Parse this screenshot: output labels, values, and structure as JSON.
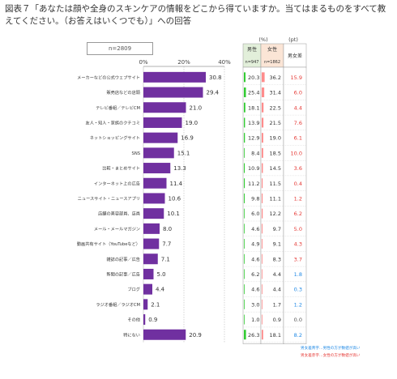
{
  "title": "図表７「あなたは顔や全身のスキンケアの情報をどこから得ていますか。当てはまるものをすべて教えてください。（お答えはいくつでも）」への回答",
  "n_label": "n=2809",
  "table": {
    "unit_pct": "(%)",
    "unit_pt": "(pt)",
    "male_header": "男性",
    "male_n": "n=947",
    "female_header": "女性",
    "female_n": "n=1862",
    "diff_header": "男女差"
  },
  "notes": {
    "positive": "男女差青字…男性の方が数値が高い",
    "negative": "男女差赤字…女性の方が数値が高い"
  },
  "colors": {
    "bar": "#7030a0",
    "male_bg": "#e2efda",
    "female_bg": "#fbe5d6",
    "male_bar": "#33cc33",
    "female_bar": "#ff8c8c",
    "diff_red": "#e53935",
    "diff_blue": "#1e88e5"
  },
  "chart_data": {
    "type": "bar",
    "orientation": "horizontal",
    "categories": [
      "メーカーなどの公式ウェブサイト",
      "販売店などの店頭",
      "テレビ番組／テレビCM",
      "友人・知人・家族のクチコミ",
      "ネットショッピングサイト",
      "SNS",
      "比較・まとめサイト",
      "インターネット上の広告",
      "ニュースサイト・ニュースアプリ",
      "店舗の美容部員、店員",
      "メール・メールマガジン",
      "動画共有サイト（YouTubeなど）",
      "雑誌の記事／広告",
      "新聞の記事／広告",
      "ブログ",
      "ラジオ番組／ラジオCM",
      "その他",
      "特にない"
    ],
    "values": [
      30.8,
      29.4,
      21.0,
      19.0,
      16.9,
      15.1,
      13.3,
      11.4,
      10.6,
      10.1,
      8.0,
      7.7,
      7.1,
      5.0,
      4.4,
      2.1,
      0.9,
      20.9
    ],
    "value_labels": [
      "30.8",
      "29.4",
      "21.0",
      "19.0",
      "16.9",
      "15.1",
      "13.3",
      "11.4",
      "10.6",
      "10.1",
      "8.0",
      "7.7",
      "7.1",
      "5.0",
      "4.4",
      "2.1",
      "0.9",
      "20.9"
    ],
    "xlim": [
      0,
      40
    ],
    "xticks": [
      "0%",
      "20%",
      "40%"
    ],
    "male": [
      "20.3",
      "25.4",
      "18.1",
      "13.9",
      "12.9",
      "8.4",
      "10.9",
      "11.2",
      "9.8",
      "6.0",
      "4.6",
      "4.9",
      "4.6",
      "6.2",
      "4.6",
      "3.0",
      "1.0",
      "26.3"
    ],
    "female": [
      "36.2",
      "31.4",
      "22.5",
      "21.5",
      "19.0",
      "18.5",
      "14.5",
      "11.5",
      "11.1",
      "12.2",
      "9.7",
      "9.1",
      "8.3",
      "4.4",
      "4.4",
      "1.7",
      "0.9",
      "18.1"
    ],
    "diff": [
      "15.9",
      "6.0",
      "4.4",
      "7.6",
      "6.1",
      "10.0",
      "3.6",
      "0.4",
      "1.2",
      "6.2",
      "5.0",
      "4.3",
      "3.7",
      "1.8",
      "0.3",
      "1.2",
      "0.0",
      "8.2"
    ],
    "diff_sign": [
      "neg",
      "neg",
      "neg",
      "neg",
      "neg",
      "neg",
      "neg",
      "neg",
      "neg",
      "neg",
      "neg",
      "neg",
      "neg",
      "pos",
      "pos",
      "pos",
      "zero",
      "pos"
    ],
    "grid": true
  }
}
